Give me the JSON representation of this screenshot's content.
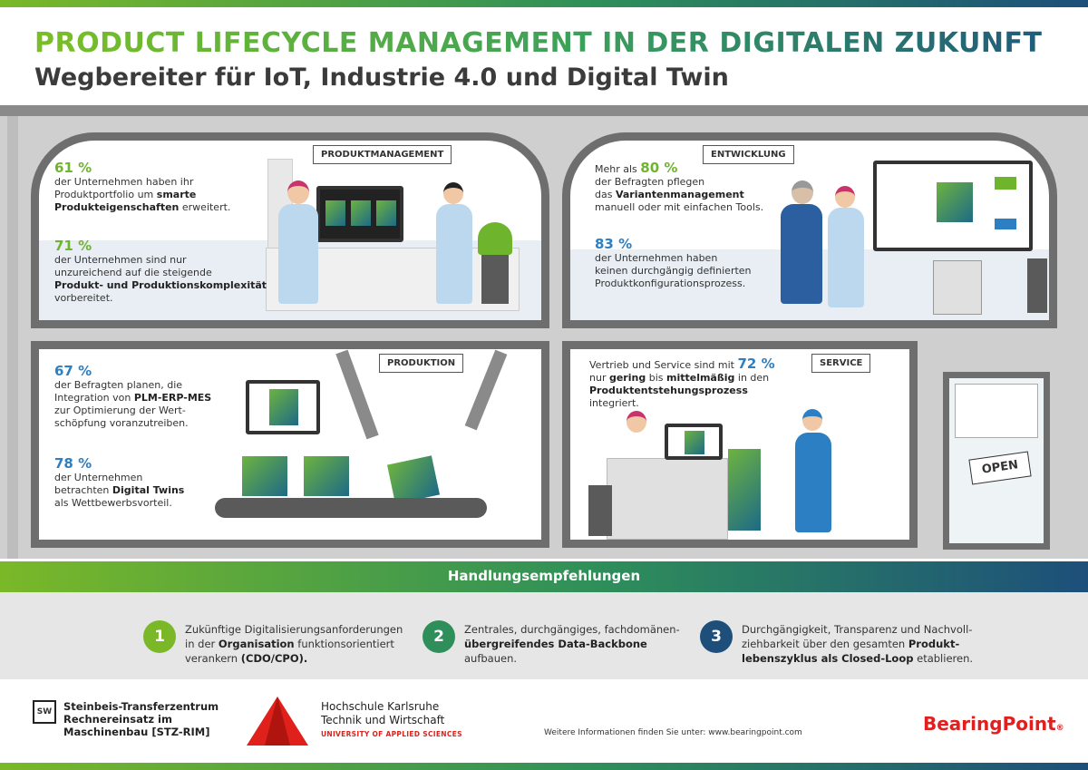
{
  "header": {
    "title": "PRODUCT LIFECYCLE MANAGEMENT IN DER DIGITALEN ZUKUNFT",
    "subtitle": "Wegbereiter für IoT, Industrie 4.0 und Digital Twin"
  },
  "rooms": {
    "produktmanagement": {
      "tag": "PRODUKTMANAGEMENT",
      "stat1": {
        "pct": "61 %",
        "t1": "der Unternehmen haben ihr",
        "t2": "Produktportfolio um ",
        "t2b": "smarte",
        "t3b": "Produkteigenschaften",
        "t3": " erweitert."
      },
      "stat2": {
        "pct": "71 %",
        "t1": "der Unternehmen sind nur",
        "t2": "unzureichend auf die steigende",
        "t3b": "Produkt- und Produktionskomplexität",
        "t4": "vorbereitet."
      }
    },
    "entwicklung": {
      "tag": "ENTWICKLUNG",
      "stat1": {
        "pre": "Mehr als ",
        "pct": "80 %",
        "t1": "der Befragten pflegen",
        "t2": "das ",
        "t2b": "Variantenmanagement",
        "t3": "manuell oder mit einfachen Tools."
      },
      "stat2": {
        "pct": "83 %",
        "t1": "der  Unternehmen haben",
        "t2": "keinen durchgängig definierten",
        "t3": "Produktkonfigurationsprozess."
      }
    },
    "produktion": {
      "tag": "PRODUKTION",
      "stat1": {
        "pct": "67 %",
        "t1": "der Befragten planen, die",
        "t2": "Integration von ",
        "t2b": "PLM-ERP-MES",
        "t3": "zur Optimierung der Wert-",
        "t4": "schöpfung voranzutreiben."
      },
      "stat2": {
        "pct": "78 %",
        "t1": "der Unternehmen",
        "t2": "betrachten ",
        "t2b": "Digital Twins",
        "t3": "als Wettbewerbsvorteil."
      }
    },
    "service": {
      "tag": "SERVICE",
      "t1": "Vertrieb und Service sind mit ",
      "pct": "72 %",
      "t2": "nur ",
      "t2b": "gering",
      "t2c": " bis ",
      "t2d": "mittelmäßig",
      "t2e": " in den",
      "t3b": "Produktentstehungsprozess",
      "t3": " integriert."
    },
    "door_sign": "OPEN"
  },
  "recommendations": {
    "title": "Handlungsempfehlungen",
    "items": [
      {
        "num": "1",
        "color": "#7ab828",
        "l1": "Zukünftige Digitalisierungsanforderungen",
        "l2": "in der ",
        "l2b": "Organisation",
        "l2c": " funktionsorientiert",
        "l3": "verankern ",
        "l3b": "(CDO/CPO)."
      },
      {
        "num": "2",
        "color": "#2e8f5a",
        "l1": "Zentrales, durchgängiges, fachdomänen-",
        "l2b": "übergreifendes Data-Backbone",
        "l2": " aufbauen."
      },
      {
        "num": "3",
        "color": "#1d4f7a",
        "l1": "Durchgängigkeit, Transparenz und Nachvoll-",
        "l2": "ziehbarkeit über den gesamten ",
        "l2b": "Produkt-",
        "l3b": "lebenszyklus als Closed-Loop",
        "l3": " etablieren."
      }
    ]
  },
  "footer": {
    "steinbeis": [
      "Steinbeis-Transferzentrum",
      "Rechnereinsatz im",
      "Maschinenbau [STZ-RIM]"
    ],
    "steinbeis_logo": "SW",
    "hochschule": [
      "Hochschule Karlsruhe",
      "Technik und Wirtschaft"
    ],
    "hochschule_sub": "UNIVERSITY OF APPLIED SCIENCES",
    "more_info": "Weitere Informationen finden Sie unter: www.bearingpoint.com",
    "brand": "BearingPoint",
    "brand_mark": "®"
  },
  "colors": {
    "green": "#6fb42d",
    "blue": "#2c7fc2",
    "dark_blue": "#1d4f7a",
    "brand_red": "#e02020"
  }
}
